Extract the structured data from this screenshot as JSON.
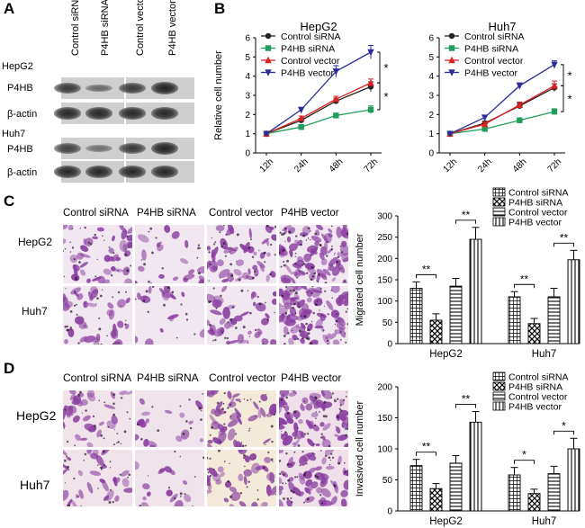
{
  "panels": {
    "a": "A",
    "b": "B",
    "c": "C",
    "d": "D"
  },
  "blot": {
    "columns": [
      "Control siRNA",
      "P4HB siRNA",
      "Control vector",
      "P4HB vector"
    ],
    "cell_lines": [
      "HepG2",
      "Huh7"
    ],
    "proteins": [
      "P4HB",
      "β-actin"
    ],
    "band_intensity": {
      "HepG2": {
        "P4HB": [
          0.75,
          0.35,
          0.75,
          0.95
        ],
        "β-actin": [
          0.9,
          0.9,
          0.9,
          0.9
        ]
      },
      "Huh7": {
        "P4HB": [
          0.7,
          0.3,
          0.75,
          0.95
        ],
        "β-actin": [
          0.9,
          0.9,
          0.9,
          0.9
        ]
      }
    }
  },
  "micro_columns_c": [
    "Control siRNA",
    "P4HB siRNA",
    "Control vector",
    "P4HB vector"
  ],
  "micro_rows_c": [
    "HepG2",
    "Huh7"
  ],
  "micro_columns_d": [
    "Control siRNA",
    "P4HB siRNA",
    "Control vector",
    "P4HB vector"
  ],
  "micro_rows_d": [
    "HepG2",
    "Huh7"
  ],
  "colors": {
    "control_sirna": "#222222",
    "p4hb_sirna": "#1f9e5a",
    "control_vector": "#e02020",
    "p4hb_vector": "#2b2b9a",
    "stain": "#8a3fa0"
  },
  "chart_data": [
    {
      "type": "line",
      "title": "HepG2",
      "x": [
        "12h",
        "24h",
        "48h",
        "72h"
      ],
      "ylabel": "Relative cell number",
      "ylim": [
        0,
        6
      ],
      "yticks": [
        0,
        1,
        2,
        3,
        4,
        5,
        6
      ],
      "legend_position": "top-left",
      "series": [
        {
          "name": "Control siRNA",
          "values": [
            1.0,
            1.7,
            2.7,
            3.45
          ],
          "errors": [
            0.08,
            0.1,
            0.15,
            0.25
          ],
          "color": "#222222",
          "marker": "circle"
        },
        {
          "name": "P4HB siRNA",
          "values": [
            1.0,
            1.35,
            1.95,
            2.25
          ],
          "errors": [
            0.05,
            0.08,
            0.08,
            0.2
          ],
          "color": "#1f9e5a",
          "marker": "square"
        },
        {
          "name": "Control vector",
          "values": [
            1.0,
            1.8,
            2.8,
            3.65
          ],
          "errors": [
            0.08,
            0.12,
            0.15,
            0.2
          ],
          "color": "#e02020",
          "marker": "triangle"
        },
        {
          "name": "P4HB vector",
          "values": [
            1.0,
            2.25,
            4.25,
            5.25
          ],
          "errors": [
            0.08,
            0.12,
            0.3,
            0.35
          ],
          "color": "#2b2b9a",
          "marker": "triangle-down"
        }
      ],
      "significance": [
        "*",
        "*"
      ]
    },
    {
      "type": "line",
      "title": "Huh7",
      "x": [
        "12h",
        "24h",
        "48h",
        "72h"
      ],
      "ylabel": "",
      "ylim": [
        0,
        6
      ],
      "yticks": [
        0,
        1,
        2,
        3,
        4,
        5,
        6
      ],
      "legend_position": "top-left",
      "series": [
        {
          "name": "Control siRNA",
          "values": [
            1.0,
            1.55,
            2.45,
            3.4
          ],
          "errors": [
            0.06,
            0.1,
            0.15,
            0.2
          ],
          "color": "#222222",
          "marker": "circle"
        },
        {
          "name": "P4HB siRNA",
          "values": [
            1.0,
            1.25,
            1.7,
            2.15
          ],
          "errors": [
            0.05,
            0.08,
            0.1,
            0.15
          ],
          "color": "#1f9e5a",
          "marker": "square"
        },
        {
          "name": "Control vector",
          "values": [
            1.0,
            1.5,
            2.5,
            3.5
          ],
          "errors": [
            0.06,
            0.1,
            0.15,
            0.25
          ],
          "color": "#e02020",
          "marker": "triangle"
        },
        {
          "name": "P4HB vector",
          "values": [
            1.0,
            1.85,
            3.5,
            4.6
          ],
          "errors": [
            0.06,
            0.1,
            0.15,
            0.2
          ],
          "color": "#2b2b9a",
          "marker": "triangle-down"
        }
      ],
      "significance": [
        "*",
        "*"
      ]
    },
    {
      "type": "bar",
      "categories": [
        "HepG2",
        "Huh7"
      ],
      "ylabel": "Migrated cell number",
      "ylim": [
        0,
        300
      ],
      "yticks": [
        0,
        50,
        100,
        150,
        200,
        250,
        300
      ],
      "legend_position": "top-right",
      "series": [
        {
          "name": "Control siRNA",
          "values": [
            130,
            110
          ],
          "errors": [
            15,
            12
          ],
          "pattern": "grid"
        },
        {
          "name": "P4HB siRNA",
          "values": [
            55,
            47
          ],
          "errors": [
            15,
            12
          ],
          "pattern": "check"
        },
        {
          "name": "Control vector",
          "values": [
            135,
            110
          ],
          "errors": [
            18,
            20
          ],
          "pattern": "hlines"
        },
        {
          "name": "P4HB vector",
          "values": [
            245,
            197
          ],
          "errors": [
            28,
            22
          ],
          "pattern": "vlines"
        }
      ],
      "significance": [
        "**",
        "**",
        "**",
        "**"
      ]
    },
    {
      "type": "bar",
      "categories": [
        "HepG2",
        "Huh7"
      ],
      "ylabel": "Invasived cell number",
      "ylim": [
        0,
        200
      ],
      "yticks": [
        0,
        50,
        100,
        150,
        200
      ],
      "legend_position": "top-right",
      "series": [
        {
          "name": "Control siRNA",
          "values": [
            73,
            58
          ],
          "errors": [
            10,
            12
          ],
          "pattern": "grid"
        },
        {
          "name": "P4HB siRNA",
          "values": [
            36,
            28
          ],
          "errors": [
            8,
            7
          ],
          "pattern": "check"
        },
        {
          "name": "Control vector",
          "values": [
            77,
            60
          ],
          "errors": [
            12,
            12
          ],
          "pattern": "hlines"
        },
        {
          "name": "P4HB vector",
          "values": [
            143,
            100
          ],
          "errors": [
            17,
            17
          ],
          "pattern": "vlines"
        }
      ],
      "significance": [
        "**",
        "**",
        "*",
        "*"
      ]
    }
  ]
}
